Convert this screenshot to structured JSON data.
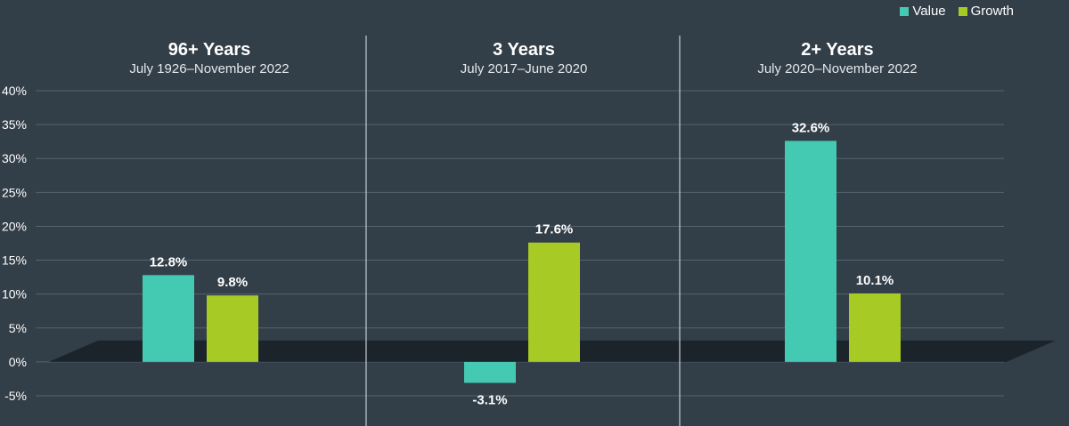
{
  "colors": {
    "background": "#323e48",
    "value": "#44c9b3",
    "growth": "#a7ca25",
    "grid": "#56626d",
    "floor": "#1c242b"
  },
  "legend": [
    {
      "label": "Value",
      "color": "#44c9b3"
    },
    {
      "label": "Growth",
      "color": "#a7ca25"
    }
  ],
  "chart_data": {
    "type": "bar",
    "ylim": [
      -5,
      40
    ],
    "y_ticks": [
      "40%",
      "35%",
      "30%",
      "25%",
      "20%",
      "15%",
      "10%",
      "5%",
      "0%",
      "-5%"
    ],
    "grid": true,
    "legend_position": "top-right",
    "categories": [
      {
        "title": "96+ Years",
        "subtitle": "July 1926–November 2022"
      },
      {
        "title": "3 Years",
        "subtitle": "July 2017–June 2020"
      },
      {
        "title": "2+ Years",
        "subtitle": "July 2020–November 2022"
      }
    ],
    "series": [
      {
        "name": "Value",
        "values": [
          12.8,
          -3.1,
          32.6
        ],
        "labels": [
          "12.8%",
          "-3.1%",
          "32.6%"
        ]
      },
      {
        "name": "Growth",
        "values": [
          9.8,
          17.6,
          10.1
        ],
        "labels": [
          "9.8%",
          "17.6%",
          "10.1%"
        ]
      }
    ]
  }
}
